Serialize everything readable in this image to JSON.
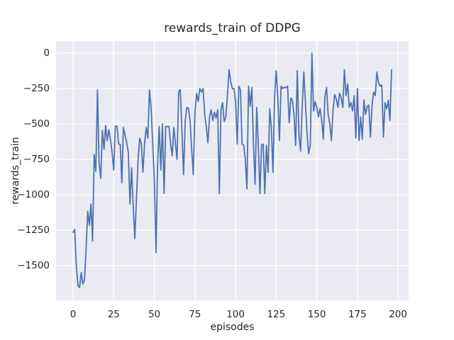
{
  "chart_data": {
    "type": "line",
    "title": "rewards_train of DDPG",
    "xlabel": "episodes",
    "ylabel": "rewards_train",
    "legend": null,
    "grid": true,
    "plot_bg_color": "#eaeaf2",
    "grid_color": "#ffffff",
    "line_color": "#4c72b0",
    "text_color": "#262626",
    "xlim": [
      -10.5,
      206.5
    ],
    "ylim": [
      -1745,
      85
    ],
    "xticks": {
      "values": [
        0,
        25,
        50,
        75,
        100,
        125,
        150,
        175,
        200
      ],
      "labels": [
        "0",
        "25",
        "50",
        "75",
        "100",
        "125",
        "150",
        "175",
        "200"
      ]
    },
    "yticks": {
      "values": [
        0,
        -250,
        -500,
        -750,
        -1000,
        -1250,
        -1500
      ],
      "labels": [
        "0",
        "−250",
        "−500",
        "−750",
        "−1000",
        "−1250",
        "−1500"
      ]
    },
    "x": {
      "start": 0,
      "step": 1,
      "count": 197
    },
    "values": [
      -1265,
      -1245,
      -1500,
      -1640,
      -1655,
      -1550,
      -1630,
      -1600,
      -1380,
      -1117,
      -1215,
      -1065,
      -1325,
      -715,
      -835,
      -260,
      -775,
      -885,
      -545,
      -680,
      -510,
      -620,
      -540,
      -610,
      -700,
      -825,
      -515,
      -515,
      -640,
      -645,
      -915,
      -525,
      -580,
      -630,
      -700,
      -1065,
      -810,
      -1085,
      -1308,
      -1020,
      -750,
      -600,
      -640,
      -840,
      -640,
      -525,
      -600,
      -260,
      -385,
      -640,
      -900,
      -1408,
      -800,
      -517,
      -825,
      -500,
      -990,
      -517,
      -520,
      -517,
      -640,
      -725,
      -525,
      -640,
      -750,
      -270,
      -258,
      -560,
      -858,
      -475,
      -383,
      -390,
      -480,
      -680,
      -858,
      -417,
      -283,
      -342,
      -250,
      -275,
      -250,
      -433,
      -525,
      -633,
      -450,
      -400,
      -475,
      -417,
      -458,
      -400,
      -992,
      -400,
      -350,
      -483,
      -450,
      -300,
      -117,
      -200,
      -250,
      -250,
      -342,
      -642,
      -233,
      -258,
      -642,
      -650,
      -750,
      -958,
      -233,
      -375,
      -242,
      -642,
      -925,
      -383,
      -642,
      -992,
      -650,
      -642,
      -992,
      -650,
      -842,
      -392,
      -525,
      -842,
      -317,
      -125,
      -317,
      -617,
      -233,
      -250,
      -240,
      -245,
      -233,
      -492,
      -317,
      -330,
      -440,
      -650,
      -125,
      -575,
      -692,
      -383,
      -133,
      -350,
      -575,
      -710,
      -650,
      0,
      -408,
      -342,
      -383,
      -450,
      -392,
      -475,
      -608,
      -308,
      -242,
      -433,
      -500,
      -617,
      -400,
      -292,
      -325,
      -383,
      -283,
      -317,
      -383,
      -117,
      -300,
      -217,
      -383,
      -350,
      -408,
      -300,
      -600,
      -250,
      -617,
      -450,
      -608,
      -330,
      -433,
      -375,
      -367,
      -592,
      -367,
      -275,
      -300,
      -133,
      -208,
      -233,
      -225,
      -592,
      -350,
      -392,
      -333,
      -475,
      -117
    ]
  }
}
